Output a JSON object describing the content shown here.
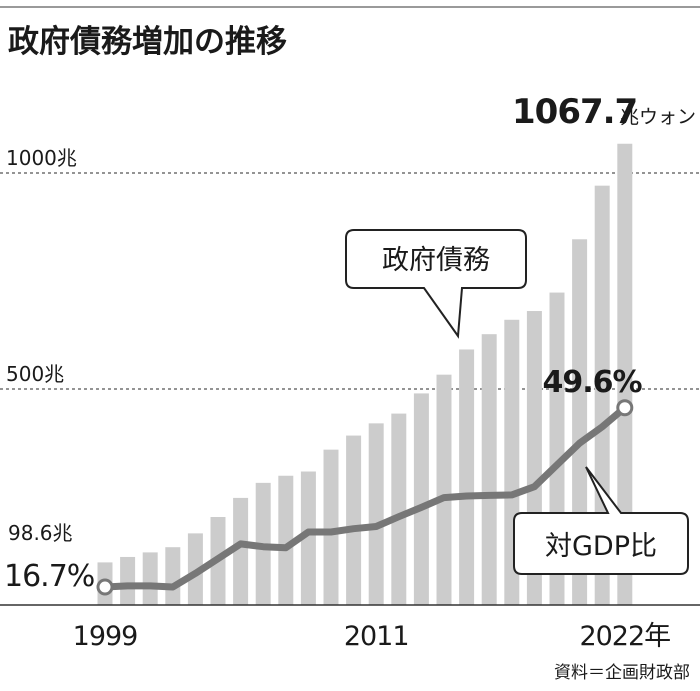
{
  "title": "政府債務増加の推移",
  "source": "資料＝企画財政部",
  "colors": {
    "bar": "#cccccc",
    "line": "#777777",
    "text": "#1a1a1a",
    "grid": "#555555"
  },
  "chart_data": {
    "type": "bar",
    "title": "政府債務増加の推移",
    "x": [
      1999,
      2000,
      2001,
      2002,
      2003,
      2004,
      2005,
      2006,
      2007,
      2008,
      2009,
      2010,
      2011,
      2012,
      2013,
      2014,
      2015,
      2016,
      2017,
      2018,
      2019,
      2020,
      2021,
      2022
    ],
    "x_tick_labels": [
      {
        "year": 1999,
        "label": "1999"
      },
      {
        "year": 2011,
        "label": "2011"
      },
      {
        "year": 2022,
        "label": "2022年"
      }
    ],
    "series": [
      {
        "name": "政府債務",
        "type": "bar",
        "unit": "兆ウォン",
        "values": [
          98.6,
          111.2,
          121.8,
          133.8,
          165.8,
          203.7,
          247.9,
          282.7,
          299.2,
          309.0,
          359.6,
          392.2,
          420.5,
          443.1,
          489.8,
          533.2,
          591.5,
          626.9,
          660.2,
          680.5,
          723.2,
          846.6,
          970.7,
          1067.7
        ],
        "callout": "政府債務"
      },
      {
        "name": "対GDP比",
        "type": "line",
        "unit": "%",
        "values": [
          16.7,
          16.9,
          16.9,
          16.7,
          19.2,
          21.9,
          24.6,
          24.1,
          23.9,
          26.8,
          26.8,
          27.4,
          27.8,
          29.6,
          31.3,
          33.1,
          33.4,
          33.5,
          33.6,
          35.1,
          39.1,
          43.1,
          46.1,
          49.6
        ],
        "callout": "対GDP比"
      }
    ],
    "y_gridlines": [
      {
        "value": 500,
        "label": "500兆"
      },
      {
        "value": 1000,
        "label": "1000兆"
      }
    ],
    "ylim": [
      0,
      1100
    ],
    "annotations": {
      "bar_first_value": "98.6兆",
      "bar_last_value": "1067.7",
      "bar_last_unit": "兆ウォン",
      "line_first_value": "16.7%",
      "line_last_value": "49.6%"
    }
  }
}
